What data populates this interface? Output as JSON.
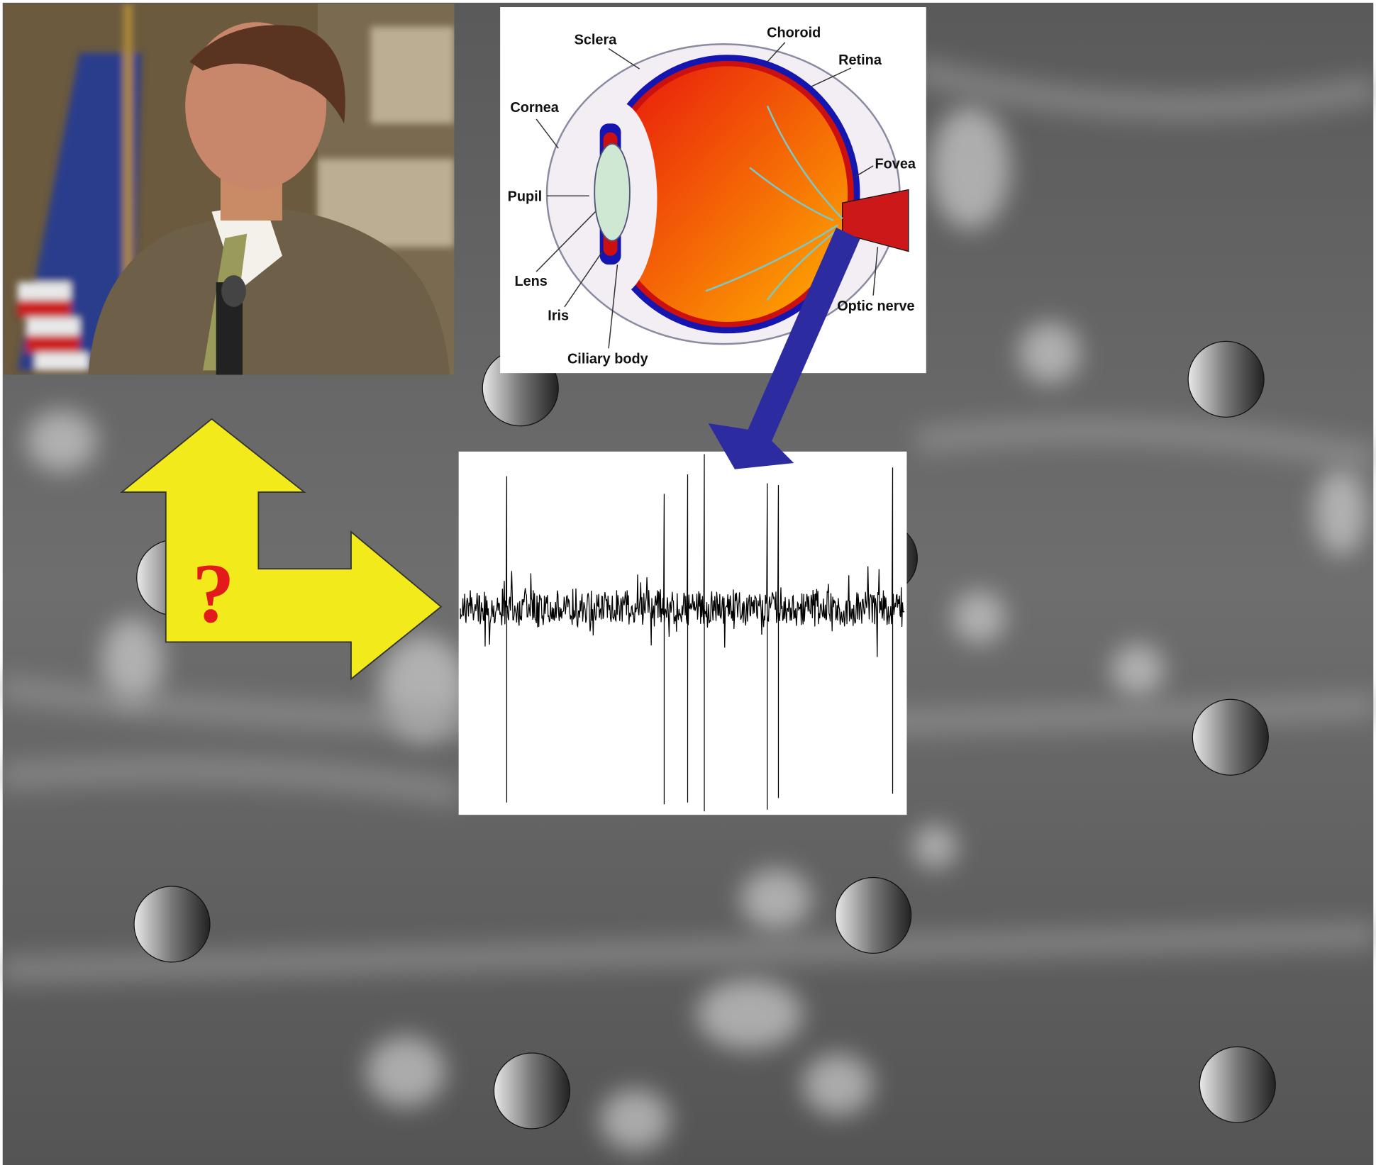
{
  "eye_diagram": {
    "labels": [
      "Sclera",
      "Choroid",
      "Retina",
      "Cornea",
      "Fovea",
      "Pupil",
      "Lens",
      "Iris",
      "Optic nerve",
      "Ciliary body"
    ]
  },
  "arrow": {
    "symbol": "?"
  }
}
